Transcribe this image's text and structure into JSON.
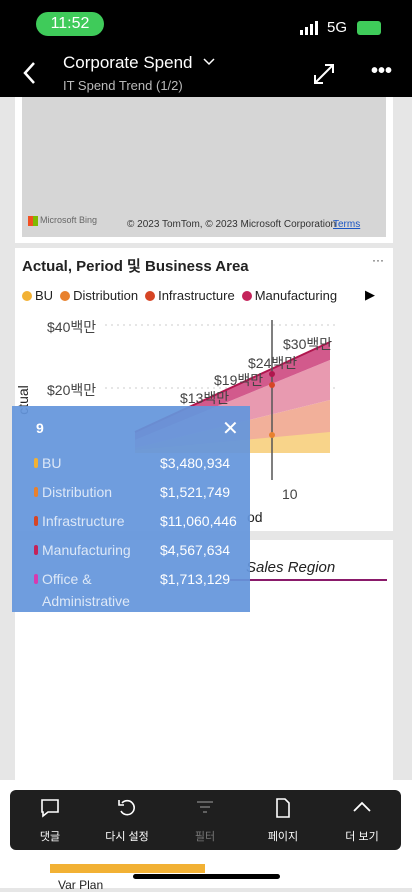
{
  "status": {
    "time": "11:52",
    "network": "5G"
  },
  "header": {
    "title": "Corporate Spend",
    "subtitle": "IT Spend Trend (1/2)"
  },
  "map": {
    "logo": "Microsoft Bing",
    "attribution": "© 2023 TomTom, © 2023 Microsoft Corporation",
    "terms": "Terms"
  },
  "visual": {
    "title": "Actual, Period 및 Business Area",
    "legend": [
      "BU",
      "Distribution",
      "Infrastructure",
      "Manufacturing"
    ],
    "yticks": [
      "$40백만",
      "$20백만"
    ],
    "xtick": "10",
    "y_label": "ctual",
    "x_label": "od",
    "data_labels": [
      "$13백만",
      "$19백만",
      "$24백만",
      "$30백만"
    ]
  },
  "tooltip": {
    "title": "9",
    "rows": [
      [
        "BU",
        "$3,480,934"
      ],
      [
        "Distribution",
        "$1,521,749"
      ],
      [
        "Infrastructure",
        "$11,060,446"
      ],
      [
        "Manufacturing",
        "$4,567,634"
      ],
      [
        "Office &",
        "$1,713,129"
      ]
    ],
    "continuation": "Administrative"
  },
  "next_visual": {
    "title": "Sales Region"
  },
  "toolbar": [
    "댓글",
    "다시 설정",
    "필터",
    "페이지",
    "더 보기"
  ],
  "bottom": {
    "label": "Var Plan"
  }
}
